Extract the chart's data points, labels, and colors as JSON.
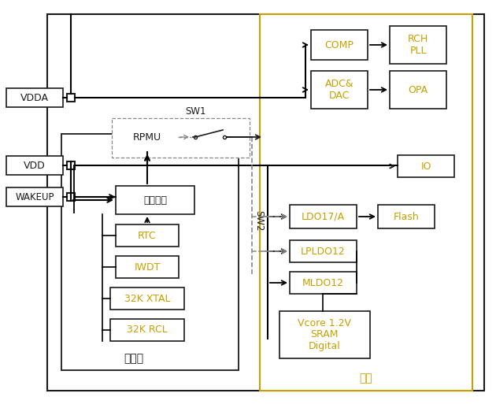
{
  "bg_color": "#ffffff",
  "orange_color": "#c8a000",
  "black": "#1a1a1a",
  "gray": "#888888",
  "labels": {
    "VDDA": "VDDA",
    "VDD": "VDD",
    "WAKEUP": "WAKEUP",
    "RPMU": "RPMU",
    "SW1": "SW1",
    "SW2": "SW2",
    "wakeup_ctrl": "唤醒控制",
    "RTC": "RTC",
    "IWDT": "IWDT",
    "32K_XTAL": "32K XTAL",
    "32K_RCL": "32K RCL",
    "standby_label": "待机区",
    "COMP": "COMP",
    "RCH_PLL": "RCH\nPLL",
    "ADC_DAC": "ADC&\nDAC",
    "OPA": "OPA",
    "IO": "IO",
    "LDO17A": "LDO17/A",
    "Flash": "Flash",
    "LPLDO12": "LPLDO12",
    "MLDO12": "MLDO12",
    "Vcore": "Vcore 1.2V\nSRAM\nDigital",
    "main_label": "主区"
  }
}
